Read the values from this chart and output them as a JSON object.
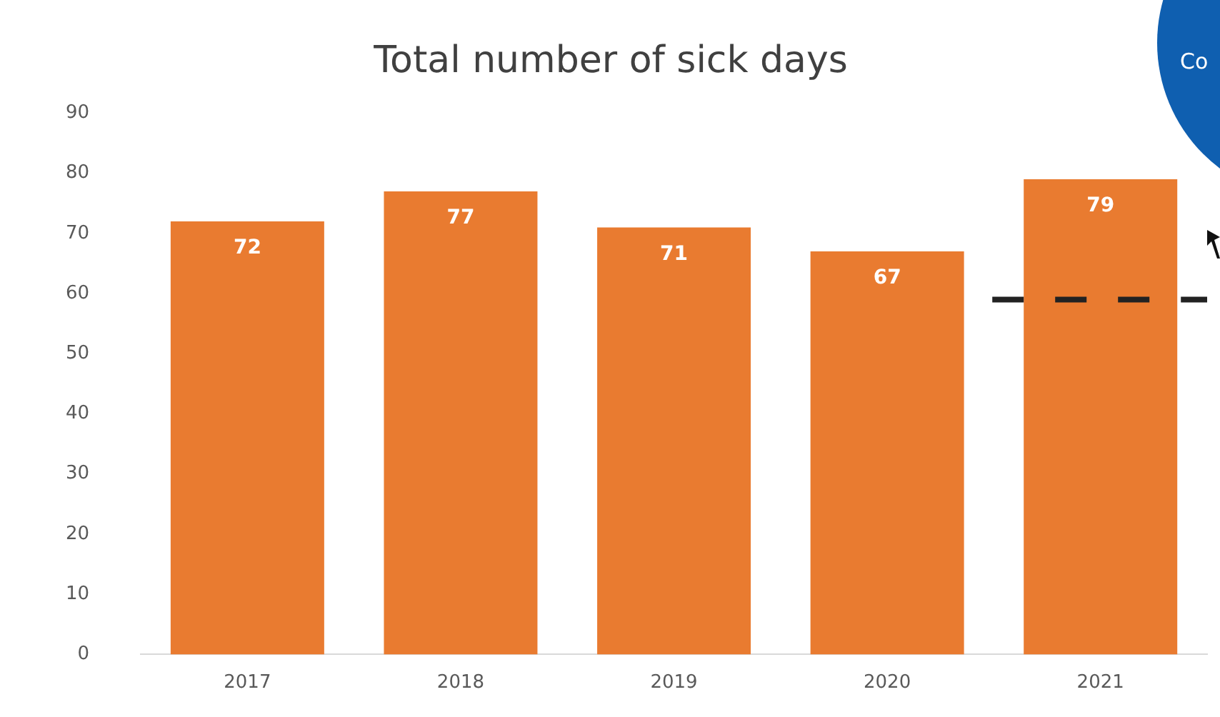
{
  "chart_data": {
    "type": "bar",
    "title": "Total number of sick days",
    "categories": [
      "2017",
      "2018",
      "2019",
      "2020",
      "2021"
    ],
    "values": [
      72,
      77,
      71,
      67,
      79
    ],
    "color": "#e97b30",
    "data_labels": true,
    "ylim": [
      0,
      90
    ],
    "yticks": [
      0,
      10,
      20,
      30,
      40,
      50,
      60,
      70,
      80,
      90
    ],
    "grid": false,
    "legend": false,
    "ref_lines": [
      {
        "axis": "y",
        "value": 59,
        "color": "#222222",
        "line_style": "dashed"
      }
    ],
    "annotations": [
      "Co"
    ]
  }
}
